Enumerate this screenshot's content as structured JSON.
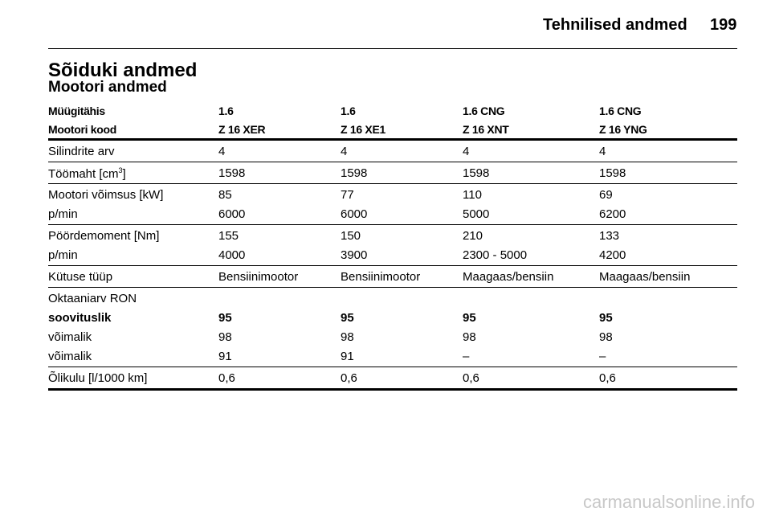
{
  "header": {
    "title": "Tehnilised andmed",
    "page": "199"
  },
  "section": {
    "title": "Sõiduki andmed",
    "subtitle": "Mootori andmed"
  },
  "table": {
    "head": [
      [
        "Müügitähis",
        "1.6",
        "1.6",
        "1.6 CNG",
        "1.6 CNG"
      ],
      [
        "Mootori kood",
        "Z 16 XER",
        "Z 16 XE1",
        "Z 16 XNT",
        "Z 16 YNG"
      ]
    ],
    "groups": [
      {
        "rows": [
          {
            "cells": [
              "Silindrite arv",
              "4",
              "4",
              "4",
              "4"
            ]
          }
        ]
      },
      {
        "rows": [
          {
            "cells": [
              {
                "text": "Töömaht [cm",
                "sup": "3",
                "after": "]"
              },
              "1598",
              "1598",
              "1598",
              "1598"
            ]
          }
        ]
      },
      {
        "rows": [
          {
            "cells": [
              "Mootori võimsus [kW]",
              "85",
              "77",
              "110",
              "69"
            ]
          },
          {
            "cells": [
              "p/min",
              "6000",
              "6000",
              "5000",
              "6200"
            ]
          }
        ]
      },
      {
        "rows": [
          {
            "cells": [
              "Pöördemoment [Nm]",
              "155",
              "150",
              "210",
              "133"
            ]
          },
          {
            "cells": [
              "p/min",
              "4000",
              "3900",
              "2300 - 5000",
              "4200"
            ]
          }
        ]
      },
      {
        "rows": [
          {
            "cells": [
              "Kütuse tüüp",
              "Bensiinimootor",
              "Bensiinimootor",
              "Maagaas/bensiin",
              "Maagaas/bensiin"
            ]
          }
        ]
      },
      {
        "rows": [
          {
            "cells": [
              "Oktaaniarv RON"
            ]
          },
          {
            "cells": [
              "soovituslik",
              "95",
              "95",
              "95",
              "95"
            ],
            "bold": true
          },
          {
            "cells": [
              "võimalik",
              "98",
              "98",
              "98",
              "98"
            ]
          },
          {
            "cells": [
              "võimalik",
              "91",
              "91",
              "–",
              "–"
            ]
          }
        ]
      },
      {
        "rows": [
          {
            "cells": [
              "Õlikulu [l/1000 km]",
              "0,6",
              "0,6",
              "0,6",
              "0,6"
            ]
          }
        ]
      }
    ]
  },
  "watermark": "carmanualsonline.info"
}
